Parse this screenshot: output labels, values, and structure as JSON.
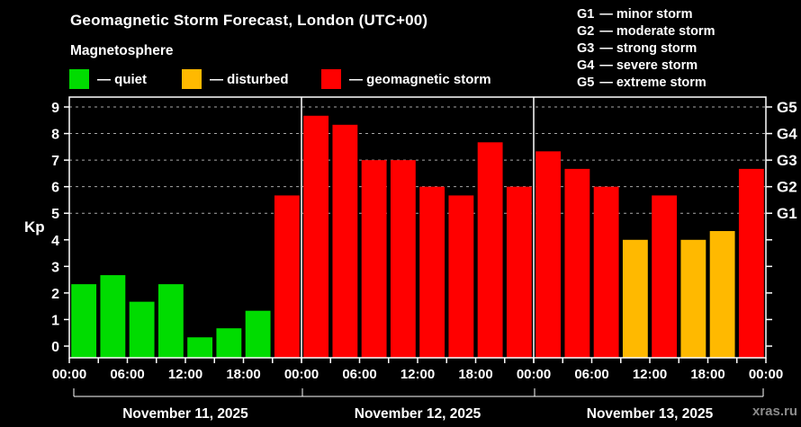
{
  "title": "Geomagnetic Storm Forecast, London (UTC+00)",
  "subtitle": "Magnetosphere",
  "legend": {
    "quiet": {
      "label": "— quiet",
      "color": "#00dc00"
    },
    "disturbed": {
      "label": "— disturbed",
      "color": "#ffb900"
    },
    "storm": {
      "label": "— geomagnetic storm",
      "color": "#ff0000"
    }
  },
  "g_scale": [
    {
      "code": "G1",
      "desc": "— minor storm"
    },
    {
      "code": "G2",
      "desc": "— moderate storm"
    },
    {
      "code": "G3",
      "desc": "— strong storm"
    },
    {
      "code": "G4",
      "desc": "— severe storm"
    },
    {
      "code": "G5",
      "desc": "— extreme storm"
    }
  ],
  "watermark": "xras.ru",
  "chart_data": {
    "type": "bar",
    "title": "Geomagnetic Storm Forecast, London (UTC+00)",
    "subtitle": "Magnetosphere",
    "ylabel": "Kp",
    "ylim": [
      0,
      9
    ],
    "yticks": [
      0,
      1,
      2,
      3,
      4,
      5,
      6,
      7,
      8,
      9
    ],
    "gridlines_at": [
      5,
      6,
      7,
      8,
      9
    ],
    "grid_on": true,
    "right_axis_labels": [
      {
        "kp": 5,
        "label": "G1"
      },
      {
        "kp": 6,
        "label": "G2"
      },
      {
        "kp": 7,
        "label": "G3"
      },
      {
        "kp": 8,
        "label": "G4"
      },
      {
        "kp": 9,
        "label": "G5"
      }
    ],
    "x_tick_labels_per_day": [
      "00:00",
      "06:00",
      "12:00",
      "18:00"
    ],
    "end_tick_label": "00:00",
    "hours_per_bar": 3,
    "days": [
      {
        "date": "November 11, 2025",
        "values": [
          2.33,
          2.67,
          1.67,
          2.33,
          0.33,
          0.67,
          1.33,
          5.67
        ],
        "status": [
          "quiet",
          "quiet",
          "quiet",
          "quiet",
          "quiet",
          "quiet",
          "quiet",
          "storm"
        ]
      },
      {
        "date": "November 12, 2025",
        "values": [
          8.67,
          8.33,
          7.0,
          7.0,
          6.0,
          5.67,
          7.67,
          6.0
        ],
        "status": [
          "storm",
          "storm",
          "storm",
          "storm",
          "storm",
          "storm",
          "storm",
          "storm"
        ]
      },
      {
        "date": "November 13, 2025",
        "values": [
          7.33,
          6.67,
          6.0,
          4.0,
          5.67,
          4.0,
          4.33,
          6.67
        ],
        "status": [
          "storm",
          "storm",
          "storm",
          "disturbed",
          "storm",
          "disturbed",
          "disturbed",
          "storm"
        ]
      }
    ]
  }
}
